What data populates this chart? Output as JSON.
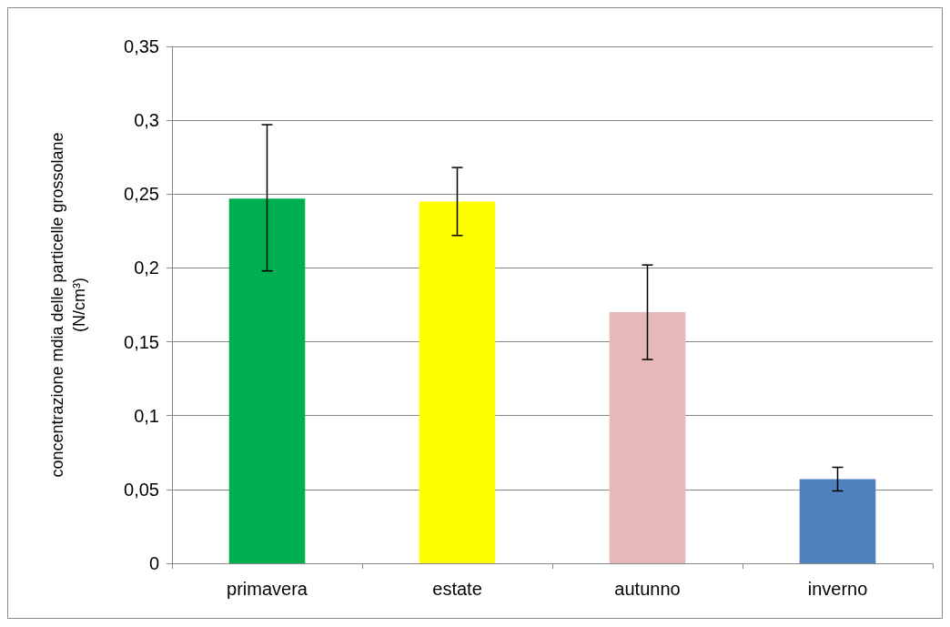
{
  "chart_data": {
    "type": "bar",
    "ylabel": "concentrazione mdia delle particelle grossolane\n(N/cm³)",
    "categories": [
      "primavera",
      "estate",
      "autunno",
      "inverno"
    ],
    "values": [
      0.247,
      0.245,
      0.17,
      0.057
    ],
    "colors": [
      "#00b050",
      "#ffff00",
      "#e6b8b7",
      "#4f81bd"
    ],
    "errors": [
      [
        0.198,
        0.297
      ],
      [
        0.222,
        0.268
      ],
      [
        0.138,
        0.202
      ],
      [
        0.049,
        0.065
      ]
    ],
    "ylim": [
      0,
      0.35
    ],
    "yticks": [
      {
        "value": 0,
        "label": "0"
      },
      {
        "value": 0.05,
        "label": "0,05"
      },
      {
        "value": 0.1,
        "label": "0,1"
      },
      {
        "value": 0.15,
        "label": "0,15"
      },
      {
        "value": 0.2,
        "label": "0,2"
      },
      {
        "value": 0.25,
        "label": "0,25"
      },
      {
        "value": 0.3,
        "label": "0,3"
      },
      {
        "value": 0.35,
        "label": "0,35"
      }
    ],
    "grid": true
  }
}
